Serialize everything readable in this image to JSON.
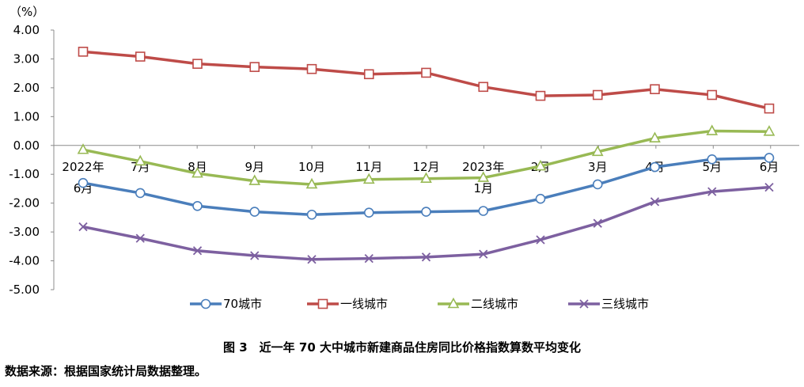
{
  "chart_data": {
    "type": "line",
    "title": "图 3　近一年 70 大中城市新建商品住房同比价格指数算数平均变化",
    "ylabel": "（%）",
    "xlabel": "",
    "ylim": [
      -5,
      4
    ],
    "yticks": [
      "4.00",
      "3.00",
      "2.00",
      "1.00",
      "0.00",
      "-1.00",
      "-2.00",
      "-3.00",
      "-4.00",
      "-5.00"
    ],
    "categories": [
      [
        "2022年",
        "6月"
      ],
      [
        "7月"
      ],
      [
        "8月"
      ],
      [
        "9月"
      ],
      [
        "10月"
      ],
      [
        "11月"
      ],
      [
        "12月"
      ],
      [
        "2023年",
        "1月"
      ],
      [
        "2月"
      ],
      [
        "3月"
      ],
      [
        "4月"
      ],
      [
        "5月"
      ],
      [
        "6月"
      ]
    ],
    "series": [
      {
        "name": "70城市",
        "color": "#4a7ebb",
        "marker": "circle",
        "values": [
          -1.3,
          -1.65,
          -2.1,
          -2.3,
          -2.4,
          -2.33,
          -2.3,
          -2.27,
          -1.85,
          -1.35,
          -0.75,
          -0.48,
          -0.43
        ]
      },
      {
        "name": "一线城市",
        "color": "#be4b48",
        "marker": "square",
        "values": [
          3.25,
          3.08,
          2.83,
          2.72,
          2.65,
          2.47,
          2.52,
          2.03,
          1.72,
          1.75,
          1.95,
          1.75,
          1.28
        ]
      },
      {
        "name": "二线城市",
        "color": "#98b954",
        "marker": "triangle",
        "values": [
          -0.15,
          -0.55,
          -0.97,
          -1.23,
          -1.35,
          -1.18,
          -1.15,
          -1.12,
          -0.72,
          -0.22,
          0.25,
          0.5,
          0.48
        ]
      },
      {
        "name": "三线城市",
        "color": "#7d60a0",
        "marker": "x",
        "values": [
          -2.82,
          -3.22,
          -3.65,
          -3.82,
          -3.95,
          -3.92,
          -3.87,
          -3.77,
          -3.27,
          -2.7,
          -1.95,
          -1.6,
          -1.45
        ]
      }
    ],
    "legend_position": "bottom",
    "grid": false
  },
  "source_note": "数据来源：根据国家统计局数据整理。"
}
